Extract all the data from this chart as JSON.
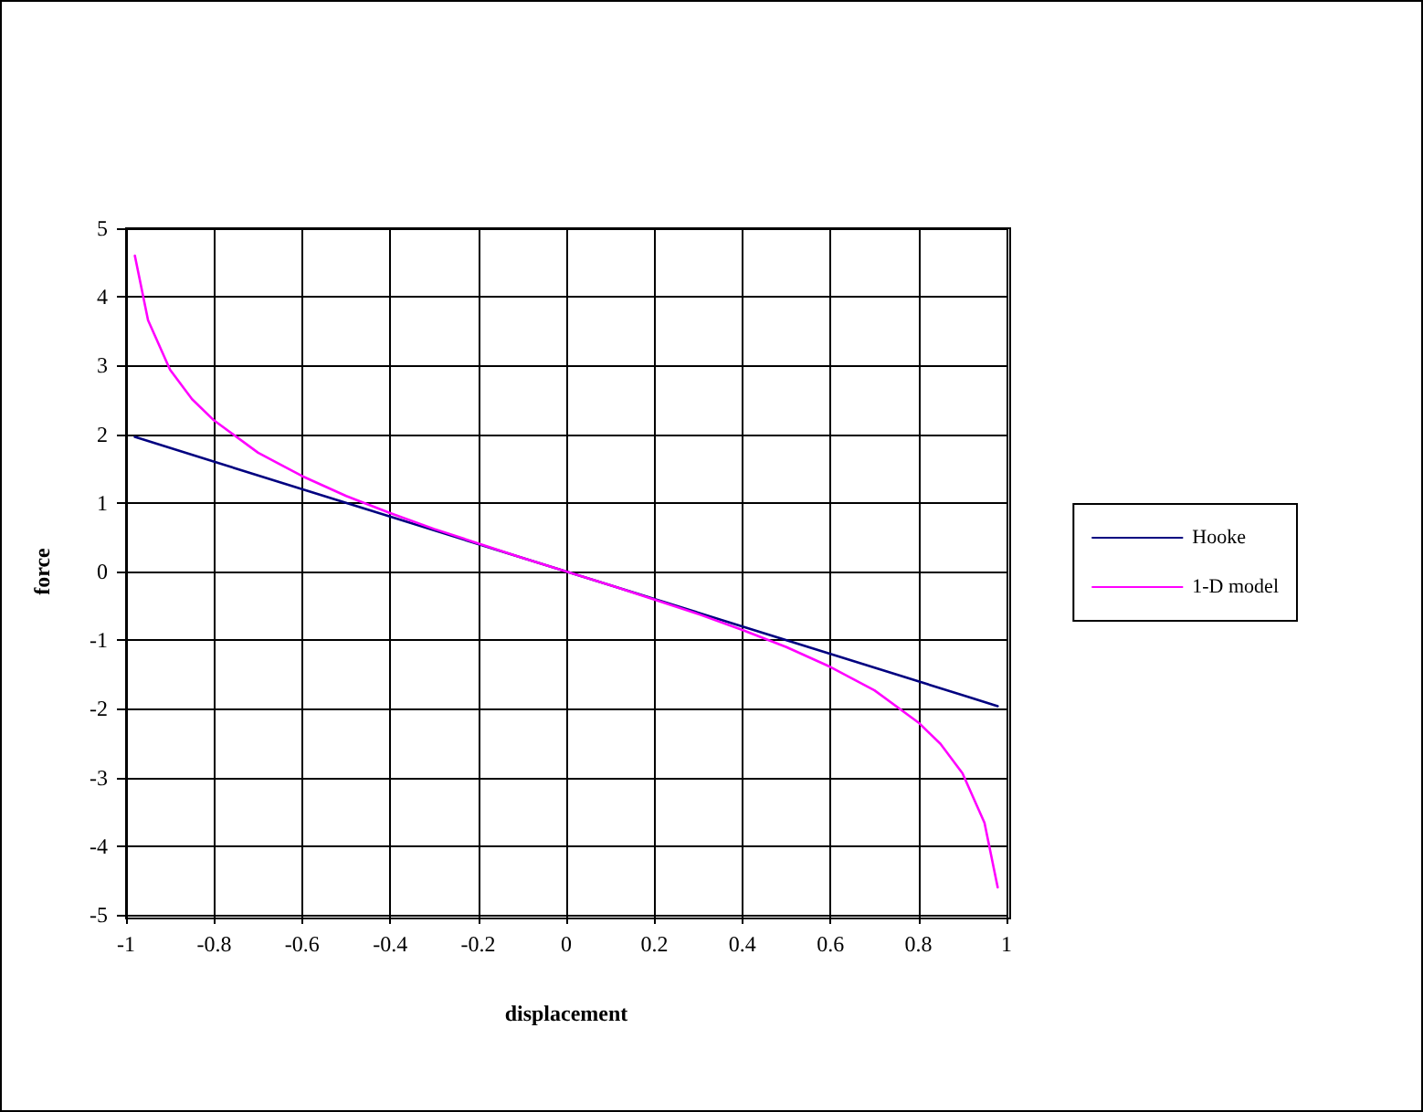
{
  "chart_data": {
    "type": "line",
    "xlabel": "displacement",
    "ylabel": "force",
    "xlim": [
      -1,
      1
    ],
    "xticks": [
      -1,
      -0.8,
      -0.6,
      -0.4,
      -0.2,
      0,
      0.2,
      0.4,
      0.6,
      0.8,
      1
    ],
    "ylim": [
      -5,
      5
    ],
    "yticks": [
      -5,
      -4,
      -3,
      -2,
      -1,
      0,
      1,
      2,
      3,
      4,
      5
    ],
    "grid": true,
    "legend": "right",
    "marker": "none",
    "line_style": "solid",
    "series": [
      {
        "name": "Hooke",
        "color": "#000080",
        "x": [
          -0.98,
          0,
          0.98
        ],
        "values": [
          1.96,
          0,
          -1.96
        ]
      },
      {
        "name": "1-D model",
        "color": "#ff00ff",
        "x": [
          -0.98,
          -0.95,
          -0.9,
          -0.85,
          -0.8,
          -0.7,
          -0.6,
          -0.5,
          -0.4,
          -0.3,
          -0.2,
          -0.1,
          0,
          0.1,
          0.2,
          0.3,
          0.4,
          0.5,
          0.6,
          0.7,
          0.8,
          0.85,
          0.9,
          0.95,
          0.98
        ],
        "values": [
          4.6,
          3.66,
          2.94,
          2.51,
          2.2,
          1.73,
          1.39,
          1.1,
          0.85,
          0.62,
          0.41,
          0.2,
          0,
          -0.2,
          -0.41,
          -0.62,
          -0.85,
          -1.1,
          -1.39,
          -1.73,
          -2.2,
          -2.51,
          -2.94,
          -3.66,
          -4.6
        ]
      }
    ]
  }
}
